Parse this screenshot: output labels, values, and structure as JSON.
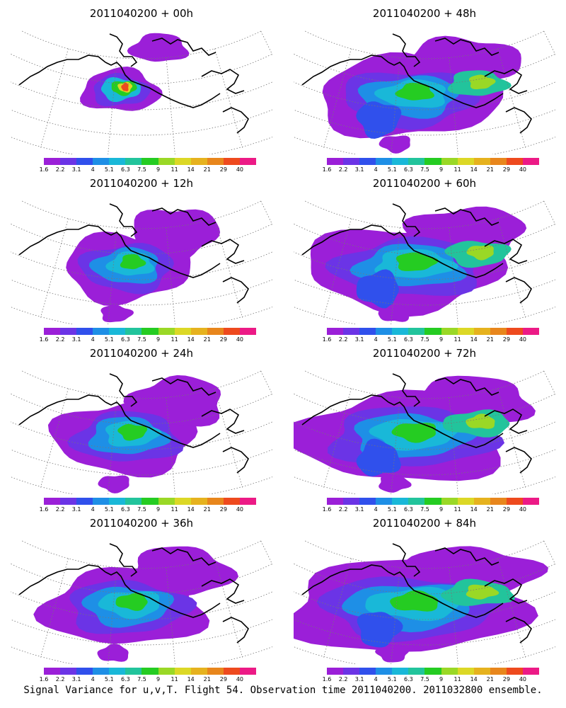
{
  "footer_caption": "Signal Variance for u,v,T. Flight 54. Observation time 2011040200. 2011032800 ensemble.",
  "colorbar": {
    "colors": [
      "#9b1fd8",
      "#6b34e6",
      "#3050ec",
      "#1e8fe6",
      "#19b8d8",
      "#22c49c",
      "#25cc22",
      "#9ad826",
      "#dcd826",
      "#e6b21e",
      "#e8861c",
      "#ee4a1e",
      "#ec1a86"
    ],
    "tick_labels": [
      "1.6",
      "2.2",
      "3.1",
      "4",
      "5.1",
      "6.3",
      "7.5",
      "9",
      "11",
      "14",
      "21",
      "29",
      "40"
    ]
  },
  "panels": [
    {
      "title": "2011040200 + 00h",
      "lead_hours": 0
    },
    {
      "title": "2011040200 + 48h",
      "lead_hours": 48
    },
    {
      "title": "2011040200 + 12h",
      "lead_hours": 12
    },
    {
      "title": "2011040200 + 60h",
      "lead_hours": 60
    },
    {
      "title": "2011040200 + 24h",
      "lead_hours": 24
    },
    {
      "title": "2011040200 + 72h",
      "lead_hours": 72
    },
    {
      "title": "2011040200 + 36h",
      "lead_hours": 36
    },
    {
      "title": "2011040200 + 84h",
      "lead_hours": 84
    }
  ]
}
